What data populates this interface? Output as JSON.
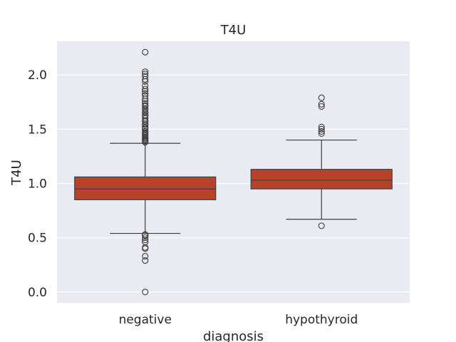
{
  "chart_data": {
    "type": "box",
    "title": "T4U",
    "xlabel": "diagnosis",
    "ylabel": "T4U",
    "categories": [
      "negative",
      "hypothyroid"
    ],
    "ylim": [
      -0.1,
      2.31
    ],
    "yticks": [
      0.0,
      0.5,
      1.0,
      1.5,
      2.0
    ],
    "ytick_labels": [
      "0.0",
      "0.5",
      "1.0",
      "1.5",
      "2.0"
    ],
    "grid": true,
    "box_color": "#b5432a",
    "background_color": "#eaeaf2",
    "boxes": [
      {
        "category": "negative",
        "whisker_low": 0.54,
        "q1": 0.85,
        "median": 0.95,
        "q3": 1.06,
        "whisker_high": 1.37,
        "outliers": [
          2.21,
          2.03,
          2.01,
          1.99,
          1.96,
          1.94,
          1.9,
          1.87,
          1.85,
          1.83,
          1.81,
          1.78,
          1.76,
          1.74,
          1.72,
          1.71,
          1.69,
          1.68,
          1.66,
          1.65,
          1.63,
          1.62,
          1.6,
          1.58,
          1.57,
          1.55,
          1.54,
          1.52,
          1.51,
          1.5,
          1.48,
          1.47,
          1.46,
          1.45,
          1.44,
          1.43,
          1.42,
          1.41,
          1.4,
          1.39,
          1.38,
          0.53,
          0.52,
          0.5,
          0.48,
          0.46,
          0.41,
          0.4,
          0.33,
          0.29,
          0.0
        ]
      },
      {
        "category": "hypothyroid",
        "whisker_low": 0.67,
        "q1": 0.95,
        "median": 1.03,
        "q3": 1.13,
        "whisker_high": 1.4,
        "outliers": [
          1.79,
          1.73,
          1.71,
          1.52,
          1.5,
          1.48,
          1.46,
          0.61
        ]
      }
    ]
  }
}
